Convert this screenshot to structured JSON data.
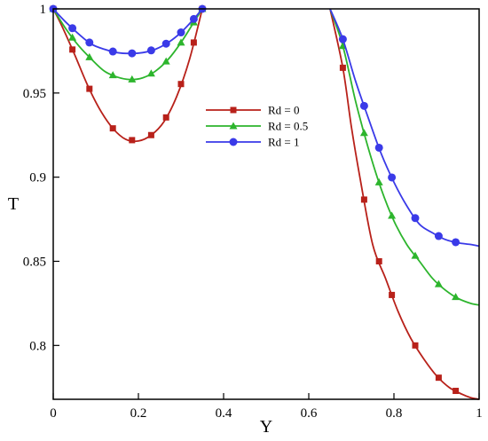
{
  "chart_data": {
    "type": "line",
    "xlabel": "Y",
    "ylabel": "T",
    "xlim": [
      0,
      1
    ],
    "ylim": [
      0.768,
      1
    ],
    "xticks": [
      "0",
      "0.2",
      "0.4",
      "0.6",
      "0.8",
      "1"
    ],
    "xtick_values": [
      0,
      0.2,
      0.4,
      0.6,
      0.8,
      1
    ],
    "yticks": [
      "0.8",
      "0.85",
      "0.9",
      "0.95",
      "1"
    ],
    "ytick_values": [
      0.8,
      0.85,
      0.9,
      0.95,
      1
    ],
    "grid": false,
    "legend_placement": "center",
    "series": [
      {
        "name": "Rd = 0",
        "color": "#b8211a",
        "marker": "square",
        "segments": [
          {
            "x": [
              0,
              0.02,
              0.05,
              0.08,
              0.11,
              0.14,
              0.17,
              0.2,
              0.23,
              0.26,
              0.29,
              0.32,
              0.35
            ],
            "y": [
              1,
              0.99,
              0.973,
              0.955,
              0.94,
              0.929,
              0.9225,
              0.9215,
              0.925,
              0.933,
              0.948,
              0.97,
              1
            ],
            "markers": [
              0,
              0.045,
              0.085,
              0.14,
              0.185,
              0.23,
              0.265,
              0.3,
              0.33,
              0.35
            ]
          },
          {
            "x": [
              0.65,
              0.68,
              0.7,
              0.72,
              0.75,
              0.78,
              0.81,
              0.84,
              0.87,
              0.9,
              0.93,
              0.96,
              0.98,
              1
            ],
            "y": [
              1,
              0.965,
              0.93,
              0.9,
              0.86,
              0.84,
              0.82,
              0.804,
              0.792,
              0.782,
              0.775,
              0.771,
              0.769,
              0.768
            ],
            "markers": [
              0.68,
              0.73,
              0.765,
              0.795,
              0.85,
              0.905,
              0.945
            ]
          }
        ]
      },
      {
        "name": "Rd = 0.5",
        "color": "#2db52d",
        "marker": "triangle",
        "segments": [
          {
            "x": [
              0,
              0.03,
              0.06,
              0.09,
              0.12,
              0.15,
              0.18,
              0.21,
              0.24,
              0.27,
              0.3,
              0.33,
              0.35
            ],
            "y": [
              1,
              0.988,
              0.978,
              0.97,
              0.963,
              0.9595,
              0.958,
              0.959,
              0.963,
              0.97,
              0.98,
              0.992,
              1
            ],
            "markers": [
              0,
              0.045,
              0.085,
              0.14,
              0.185,
              0.23,
              0.265,
              0.3,
              0.33,
              0.35
            ]
          },
          {
            "x": [
              0.65,
              0.68,
              0.71,
              0.74,
              0.77,
              0.8,
              0.83,
              0.86,
              0.89,
              0.92,
              0.95,
              0.98,
              1
            ],
            "y": [
              1,
              0.978,
              0.945,
              0.917,
              0.893,
              0.874,
              0.86,
              0.85,
              0.84,
              0.833,
              0.828,
              0.825,
              0.824
            ],
            "markers": [
              0.68,
              0.73,
              0.765,
              0.795,
              0.85,
              0.905,
              0.945
            ]
          }
        ]
      },
      {
        "name": "Rd = 1",
        "color": "#3a3ae8",
        "marker": "circle",
        "segments": [
          {
            "x": [
              0,
              0.03,
              0.06,
              0.09,
              0.12,
              0.15,
              0.18,
              0.21,
              0.24,
              0.27,
              0.3,
              0.33,
              0.35
            ],
            "y": [
              1,
              0.992,
              0.985,
              0.979,
              0.976,
              0.974,
              0.9735,
              0.974,
              0.976,
              0.98,
              0.986,
              0.994,
              1
            ],
            "markers": [
              0,
              0.045,
              0.085,
              0.14,
              0.185,
              0.23,
              0.265,
              0.3,
              0.33,
              0.35
            ]
          },
          {
            "x": [
              0.65,
              0.68,
              0.71,
              0.74,
              0.77,
              0.8,
              0.83,
              0.86,
              0.89,
              0.92,
              0.95,
              0.98,
              1
            ],
            "y": [
              1,
              0.982,
              0.957,
              0.935,
              0.914,
              0.897,
              0.883,
              0.872,
              0.867,
              0.863,
              0.861,
              0.86,
              0.859
            ],
            "markers": [
              0.68,
              0.73,
              0.765,
              0.795,
              0.85,
              0.905,
              0.945
            ]
          }
        ]
      }
    ]
  }
}
